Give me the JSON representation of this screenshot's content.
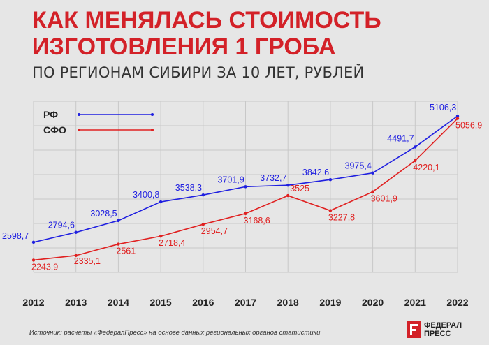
{
  "title_lines": [
    "КАК МЕНЯЛАСЬ СТОИМОСТЬ",
    "ИЗГОТОВЛЕНИЯ 1 ГРОБА"
  ],
  "subtitle": "ПО РЕГИОНАМ СИБИРИ ЗА 10 ЛЕТ, РУБЛЕЙ",
  "source": "Источник: расчеты «ФедералПресс» на основе данных региональных органов статистики",
  "logo": {
    "line1": "ФЕДЕРАЛ",
    "line2": "ПРЕСС"
  },
  "colors": {
    "title": "#d32128",
    "rf": "#1f1fe0",
    "sfo": "#e02020",
    "grid": "#c8c8c8",
    "background": "#e6e6e6"
  },
  "chart_data": {
    "type": "line",
    "categories": [
      "2012",
      "2013",
      "2014",
      "2015",
      "2016",
      "2017",
      "2018",
      "2019",
      "2020",
      "2021",
      "2022"
    ],
    "series": [
      {
        "name": "РФ",
        "color": "#1f1fe0",
        "values": [
          2598.7,
          2794.6,
          3028.5,
          3400.8,
          3538.3,
          3701.9,
          3732.7,
          3842.6,
          3975.4,
          4491.7,
          5106.3
        ],
        "labels": [
          "2598,7",
          "2794,6",
          "3028,5",
          "3400,8",
          "3538,3",
          "3701,9",
          "3732,7",
          "3842,6",
          "3975,4",
          "4491,7",
          "5106,3"
        ]
      },
      {
        "name": "СФО",
        "color": "#e02020",
        "values": [
          2243.9,
          2335.1,
          2561,
          2718.4,
          2954.7,
          3168.6,
          3525,
          3227.8,
          3601.9,
          4220.1,
          5056.9
        ],
        "labels": [
          "2243,9",
          "2335,1",
          "2561",
          "2718,4",
          "2954,7",
          "3168,6",
          "3525",
          "3227,8",
          "3601,9",
          "4220,1",
          "5056,9"
        ]
      }
    ],
    "ylim": [
      2000,
      5400
    ],
    "grid": true,
    "legend_position": "top-left"
  }
}
